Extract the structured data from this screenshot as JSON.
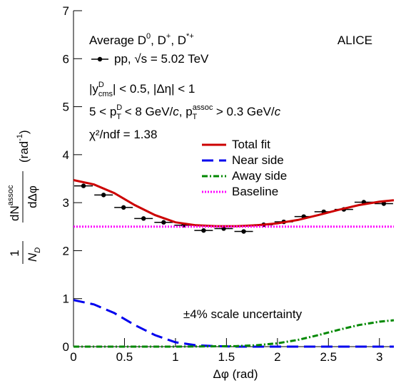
{
  "chart_data": {
    "type": "scatter",
    "xlabel": "Δφ (rad)",
    "ylabel": [
      "1",
      "N",
      "D",
      "dN",
      "assoc",
      "dΔφ",
      "(rad",
      "-1",
      ")"
    ],
    "xlim": [
      0,
      3.1416
    ],
    "ylim": [
      0,
      7
    ],
    "xticks": [
      0,
      0.5,
      1,
      1.5,
      2,
      2.5,
      3
    ],
    "yticks": [
      0,
      1,
      2,
      3,
      4,
      5,
      6,
      7
    ],
    "annotations": {
      "species": [
        "Average D",
        "0",
        ", D",
        "+",
        ", D",
        "*+"
      ],
      "experiment": "ALICE",
      "rapidity": [
        "|y",
        "D",
        "cms",
        "| < 0.5, |Δη| < 1"
      ],
      "pt": [
        "5 < p",
        "D",
        "T",
        " < 8 GeV/",
        "c",
        ", p",
        "assoc",
        "T",
        " > 0.3 GeV/",
        "c"
      ],
      "chi2": "χ²/ndf = 1.38",
      "scale": "±4% scale uncertainty"
    },
    "series": [
      {
        "name": "pp, √s = 5.02 TeV",
        "color": "#000000",
        "style": "points",
        "x": [
          0.098,
          0.295,
          0.491,
          0.687,
          0.884,
          1.08,
          1.276,
          1.473,
          1.669,
          1.865,
          2.062,
          2.258,
          2.454,
          2.651,
          2.847,
          3.043
        ],
        "values": [
          3.35,
          3.16,
          2.9,
          2.67,
          2.59,
          2.53,
          2.42,
          2.46,
          2.4,
          2.54,
          2.6,
          2.71,
          2.81,
          2.86,
          3.01,
          2.98
        ]
      },
      {
        "name": "Total fit",
        "color": "#cc0000",
        "style": "solid",
        "x": [
          0,
          0.2,
          0.4,
          0.6,
          0.8,
          1.0,
          1.2,
          1.4,
          1.6,
          1.8,
          2.0,
          2.2,
          2.4,
          2.6,
          2.8,
          3.0,
          3.1416
        ],
        "values": [
          3.47,
          3.38,
          3.2,
          2.95,
          2.74,
          2.59,
          2.53,
          2.51,
          2.51,
          2.53,
          2.57,
          2.64,
          2.74,
          2.85,
          2.95,
          3.02,
          3.05
        ]
      },
      {
        "name": "Near side",
        "color": "#0000ee",
        "style": "dashed",
        "x": [
          0,
          0.2,
          0.4,
          0.6,
          0.8,
          1.0,
          1.2,
          1.4,
          1.6,
          2.0,
          2.5,
          3.1416
        ],
        "values": [
          0.97,
          0.88,
          0.7,
          0.45,
          0.24,
          0.09,
          0.03,
          0.01,
          0,
          0,
          0,
          0
        ]
      },
      {
        "name": "Away side",
        "color": "#008800",
        "style": "dashdot",
        "x": [
          0,
          1.0,
          1.6,
          1.8,
          2.0,
          2.2,
          2.4,
          2.6,
          2.8,
          3.0,
          3.1416
        ],
        "values": [
          0,
          0,
          0.01,
          0.03,
          0.07,
          0.14,
          0.24,
          0.35,
          0.45,
          0.52,
          0.55
        ]
      },
      {
        "name": "Baseline",
        "color": "#ff00ff",
        "style": "dotted",
        "x": [
          0,
          3.1416
        ],
        "values": [
          2.5,
          2.5
        ]
      }
    ]
  }
}
